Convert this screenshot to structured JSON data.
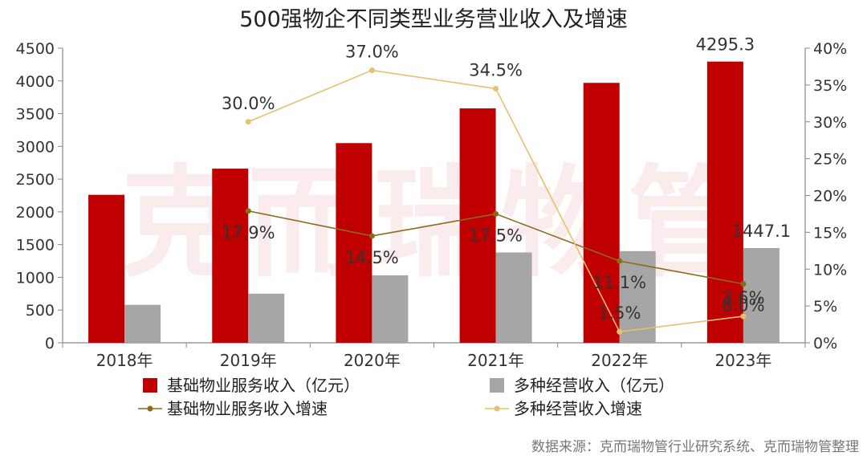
{
  "chart_data": {
    "type": "bar",
    "title": "500强物企不同类型业务营业收入及增速",
    "categories": [
      "2018年",
      "2019年",
      "2020年",
      "2021年",
      "2022年",
      "2023年"
    ],
    "series": [
      {
        "name": "基础物业服务收入（亿元）",
        "kind": "bar",
        "axis": "left",
        "color": "#c00000",
        "values": [
          2260,
          2660,
          3050,
          3580,
          3970,
          4295.3
        ]
      },
      {
        "name": "多种经营收入（亿元）",
        "kind": "bar",
        "axis": "left",
        "color": "#a6a6a6",
        "values": [
          580,
          750,
          1030,
          1380,
          1400,
          1447.1
        ]
      },
      {
        "name": "基础物业服务收入增速",
        "kind": "line",
        "axis": "right",
        "color": "#8b6a1c",
        "values": [
          null,
          17.9,
          14.5,
          17.5,
          11.1,
          8.0
        ]
      },
      {
        "name": "多种经营收入增速",
        "kind": "line",
        "axis": "right",
        "color": "#e8bf6f",
        "values": [
          null,
          30.0,
          37.0,
          34.5,
          1.5,
          3.6
        ]
      }
    ],
    "data_labels": {
      "bar1_last": "4295.3",
      "bar2_last": "1447.1",
      "line1": [
        "",
        "17.9%",
        "14.5%",
        "17.5%",
        "11.1%",
        "8.0%"
      ],
      "line2": [
        "",
        "30.0%",
        "37.0%",
        "34.5%",
        "1.5%",
        "3.6%"
      ]
    },
    "ylim_left": [
      0,
      4500
    ],
    "yticks_left": [
      "0",
      "500",
      "1000",
      "1500",
      "2000",
      "2500",
      "3000",
      "3500",
      "4000",
      "4500"
    ],
    "ylim_right": [
      0,
      40
    ],
    "yticks_right": [
      "0%",
      "5%",
      "10%",
      "15%",
      "20%",
      "25%",
      "30%",
      "35%",
      "40%"
    ],
    "grid": false,
    "legend_position": "bottom"
  },
  "watermark": "克而瑞物管",
  "source": "数据来源：克而瑞物管行业研究系统、克而瑞物管整理"
}
